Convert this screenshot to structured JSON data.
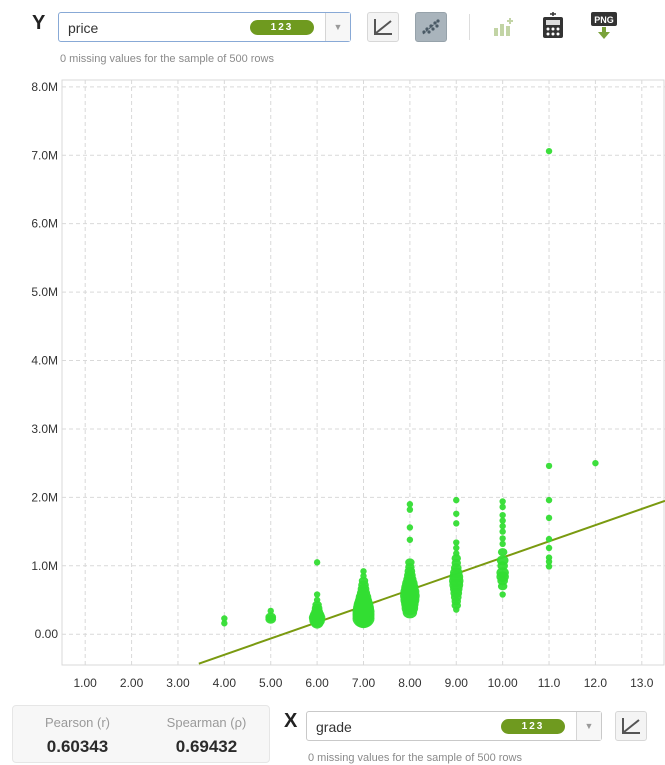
{
  "y_control": {
    "axis_letter": "Y",
    "field": "price",
    "type_label": "123",
    "note": "0 missing values for the sample of 500 rows"
  },
  "x_control": {
    "axis_letter": "X",
    "field": "grade",
    "type_label": "123",
    "note": "0 missing values for the sample of 500 rows"
  },
  "toolbar": {
    "icons": [
      "regression-line-icon",
      "scatter-toggle-icon",
      "add-chart-icon",
      "calculator-icon",
      "png-export-icon"
    ],
    "png_label": "PNG"
  },
  "stats": {
    "pearson_label": "Pearson (r)",
    "pearson_value": "0.60343",
    "spearman_label": "Spearman (ρ)",
    "spearman_value": "0.69432"
  },
  "colors": {
    "points": "#33dd33",
    "trend_line": "#7a9a10",
    "grid": "#d9d9d9",
    "pill": "#6f9a1f"
  },
  "chart_data": {
    "type": "scatter",
    "title": "",
    "xlabel": "grade",
    "ylabel": "price",
    "xlim": [
      0.5,
      13.5
    ],
    "ylim": [
      -450000,
      8100000
    ],
    "x_ticks": [
      1,
      2,
      3,
      4,
      5,
      6,
      7,
      8,
      9,
      10,
      11,
      12,
      13
    ],
    "x_tick_labels": [
      "1.00",
      "2.00",
      "3.00",
      "4.00",
      "5.00",
      "6.00",
      "7.00",
      "8.00",
      "9.00",
      "10.00",
      "11.0",
      "12.0",
      "13.0"
    ],
    "y_ticks": [
      0,
      1000000,
      2000000,
      3000000,
      4000000,
      5000000,
      6000000,
      7000000,
      8000000
    ],
    "y_tick_labels": [
      "0.00",
      "1.0M",
      "2.0M",
      "3.0M",
      "4.0M",
      "5.0M",
      "6.0M",
      "7.0M",
      "8.0M"
    ],
    "grid": true,
    "bubble_size_meaning": "count of rows at the same value",
    "trend_line": [
      [
        3.45,
        -430000
      ],
      [
        13.5,
        1950000
      ]
    ],
    "points": [
      {
        "x": 4,
        "y": 230000,
        "n": 1
      },
      {
        "x": 4,
        "y": 160000,
        "n": 1
      },
      {
        "x": 5,
        "y": 340000,
        "n": 1
      },
      {
        "x": 5,
        "y": 250000,
        "n": 3
      },
      {
        "x": 5,
        "y": 220000,
        "n": 3
      },
      {
        "x": 6,
        "y": 1050000,
        "n": 1
      },
      {
        "x": 6,
        "y": 580000,
        "n": 1
      },
      {
        "x": 6,
        "y": 500000,
        "n": 1
      },
      {
        "x": 6,
        "y": 430000,
        "n": 2
      },
      {
        "x": 6,
        "y": 380000,
        "n": 3
      },
      {
        "x": 6,
        "y": 330000,
        "n": 4
      },
      {
        "x": 6,
        "y": 280000,
        "n": 8
      },
      {
        "x": 6,
        "y": 240000,
        "n": 12
      },
      {
        "x": 6,
        "y": 200000,
        "n": 10
      },
      {
        "x": 6,
        "y": 160000,
        "n": 5
      },
      {
        "x": 7,
        "y": 920000,
        "n": 1
      },
      {
        "x": 7,
        "y": 850000,
        "n": 1
      },
      {
        "x": 7,
        "y": 780000,
        "n": 2
      },
      {
        "x": 7,
        "y": 720000,
        "n": 3
      },
      {
        "x": 7,
        "y": 660000,
        "n": 4
      },
      {
        "x": 7,
        "y": 600000,
        "n": 6
      },
      {
        "x": 7,
        "y": 540000,
        "n": 10
      },
      {
        "x": 7,
        "y": 480000,
        "n": 14
      },
      {
        "x": 7,
        "y": 430000,
        "n": 20
      },
      {
        "x": 7,
        "y": 380000,
        "n": 24
      },
      {
        "x": 7,
        "y": 330000,
        "n": 28
      },
      {
        "x": 7,
        "y": 280000,
        "n": 32
      },
      {
        "x": 7,
        "y": 230000,
        "n": 28
      },
      {
        "x": 7,
        "y": 190000,
        "n": 12
      },
      {
        "x": 8,
        "y": 1900000,
        "n": 1
      },
      {
        "x": 8,
        "y": 1820000,
        "n": 1
      },
      {
        "x": 8,
        "y": 1560000,
        "n": 1
      },
      {
        "x": 8,
        "y": 1380000,
        "n": 1
      },
      {
        "x": 8,
        "y": 1050000,
        "n": 2
      },
      {
        "x": 8,
        "y": 980000,
        "n": 2
      },
      {
        "x": 8,
        "y": 920000,
        "n": 3
      },
      {
        "x": 8,
        "y": 860000,
        "n": 4
      },
      {
        "x": 8,
        "y": 800000,
        "n": 6
      },
      {
        "x": 8,
        "y": 740000,
        "n": 10
      },
      {
        "x": 8,
        "y": 680000,
        "n": 14
      },
      {
        "x": 8,
        "y": 620000,
        "n": 18
      },
      {
        "x": 8,
        "y": 560000,
        "n": 20
      },
      {
        "x": 8,
        "y": 500000,
        "n": 18
      },
      {
        "x": 8,
        "y": 440000,
        "n": 14
      },
      {
        "x": 8,
        "y": 380000,
        "n": 12
      },
      {
        "x": 8,
        "y": 320000,
        "n": 8
      },
      {
        "x": 9,
        "y": 1960000,
        "n": 1
      },
      {
        "x": 9,
        "y": 1760000,
        "n": 1
      },
      {
        "x": 9,
        "y": 1620000,
        "n": 1
      },
      {
        "x": 9,
        "y": 1340000,
        "n": 1
      },
      {
        "x": 9,
        "y": 1260000,
        "n": 1
      },
      {
        "x": 9,
        "y": 1180000,
        "n": 1
      },
      {
        "x": 9,
        "y": 1110000,
        "n": 2
      },
      {
        "x": 9,
        "y": 1040000,
        "n": 2
      },
      {
        "x": 9,
        "y": 970000,
        "n": 3
      },
      {
        "x": 9,
        "y": 900000,
        "n": 5
      },
      {
        "x": 9,
        "y": 840000,
        "n": 7
      },
      {
        "x": 9,
        "y": 780000,
        "n": 8
      },
      {
        "x": 9,
        "y": 720000,
        "n": 7
      },
      {
        "x": 9,
        "y": 660000,
        "n": 5
      },
      {
        "x": 9,
        "y": 600000,
        "n": 4
      },
      {
        "x": 9,
        "y": 540000,
        "n": 3
      },
      {
        "x": 9,
        "y": 480000,
        "n": 2
      },
      {
        "x": 9,
        "y": 420000,
        "n": 2
      },
      {
        "x": 9,
        "y": 360000,
        "n": 1
      },
      {
        "x": 10,
        "y": 1940000,
        "n": 1
      },
      {
        "x": 10,
        "y": 1860000,
        "n": 1
      },
      {
        "x": 10,
        "y": 1740000,
        "n": 1
      },
      {
        "x": 10,
        "y": 1660000,
        "n": 1
      },
      {
        "x": 10,
        "y": 1580000,
        "n": 1
      },
      {
        "x": 10,
        "y": 1500000,
        "n": 1
      },
      {
        "x": 10,
        "y": 1400000,
        "n": 1
      },
      {
        "x": 10,
        "y": 1320000,
        "n": 1
      },
      {
        "x": 10,
        "y": 1200000,
        "n": 2
      },
      {
        "x": 10,
        "y": 1080000,
        "n": 4
      },
      {
        "x": 10,
        "y": 1000000,
        "n": 3
      },
      {
        "x": 10,
        "y": 900000,
        "n": 5
      },
      {
        "x": 10,
        "y": 840000,
        "n": 5
      },
      {
        "x": 10,
        "y": 780000,
        "n": 3
      },
      {
        "x": 10,
        "y": 700000,
        "n": 2
      },
      {
        "x": 10,
        "y": 580000,
        "n": 1
      },
      {
        "x": 11,
        "y": 7060000,
        "n": 1
      },
      {
        "x": 11,
        "y": 2460000,
        "n": 1
      },
      {
        "x": 11,
        "y": 1960000,
        "n": 1
      },
      {
        "x": 11,
        "y": 1700000,
        "n": 1
      },
      {
        "x": 11,
        "y": 1390000,
        "n": 1
      },
      {
        "x": 11,
        "y": 1260000,
        "n": 1
      },
      {
        "x": 11,
        "y": 1120000,
        "n": 1
      },
      {
        "x": 11,
        "y": 1060000,
        "n": 1
      },
      {
        "x": 11,
        "y": 990000,
        "n": 1
      },
      {
        "x": 12,
        "y": 2500000,
        "n": 1
      }
    ]
  }
}
